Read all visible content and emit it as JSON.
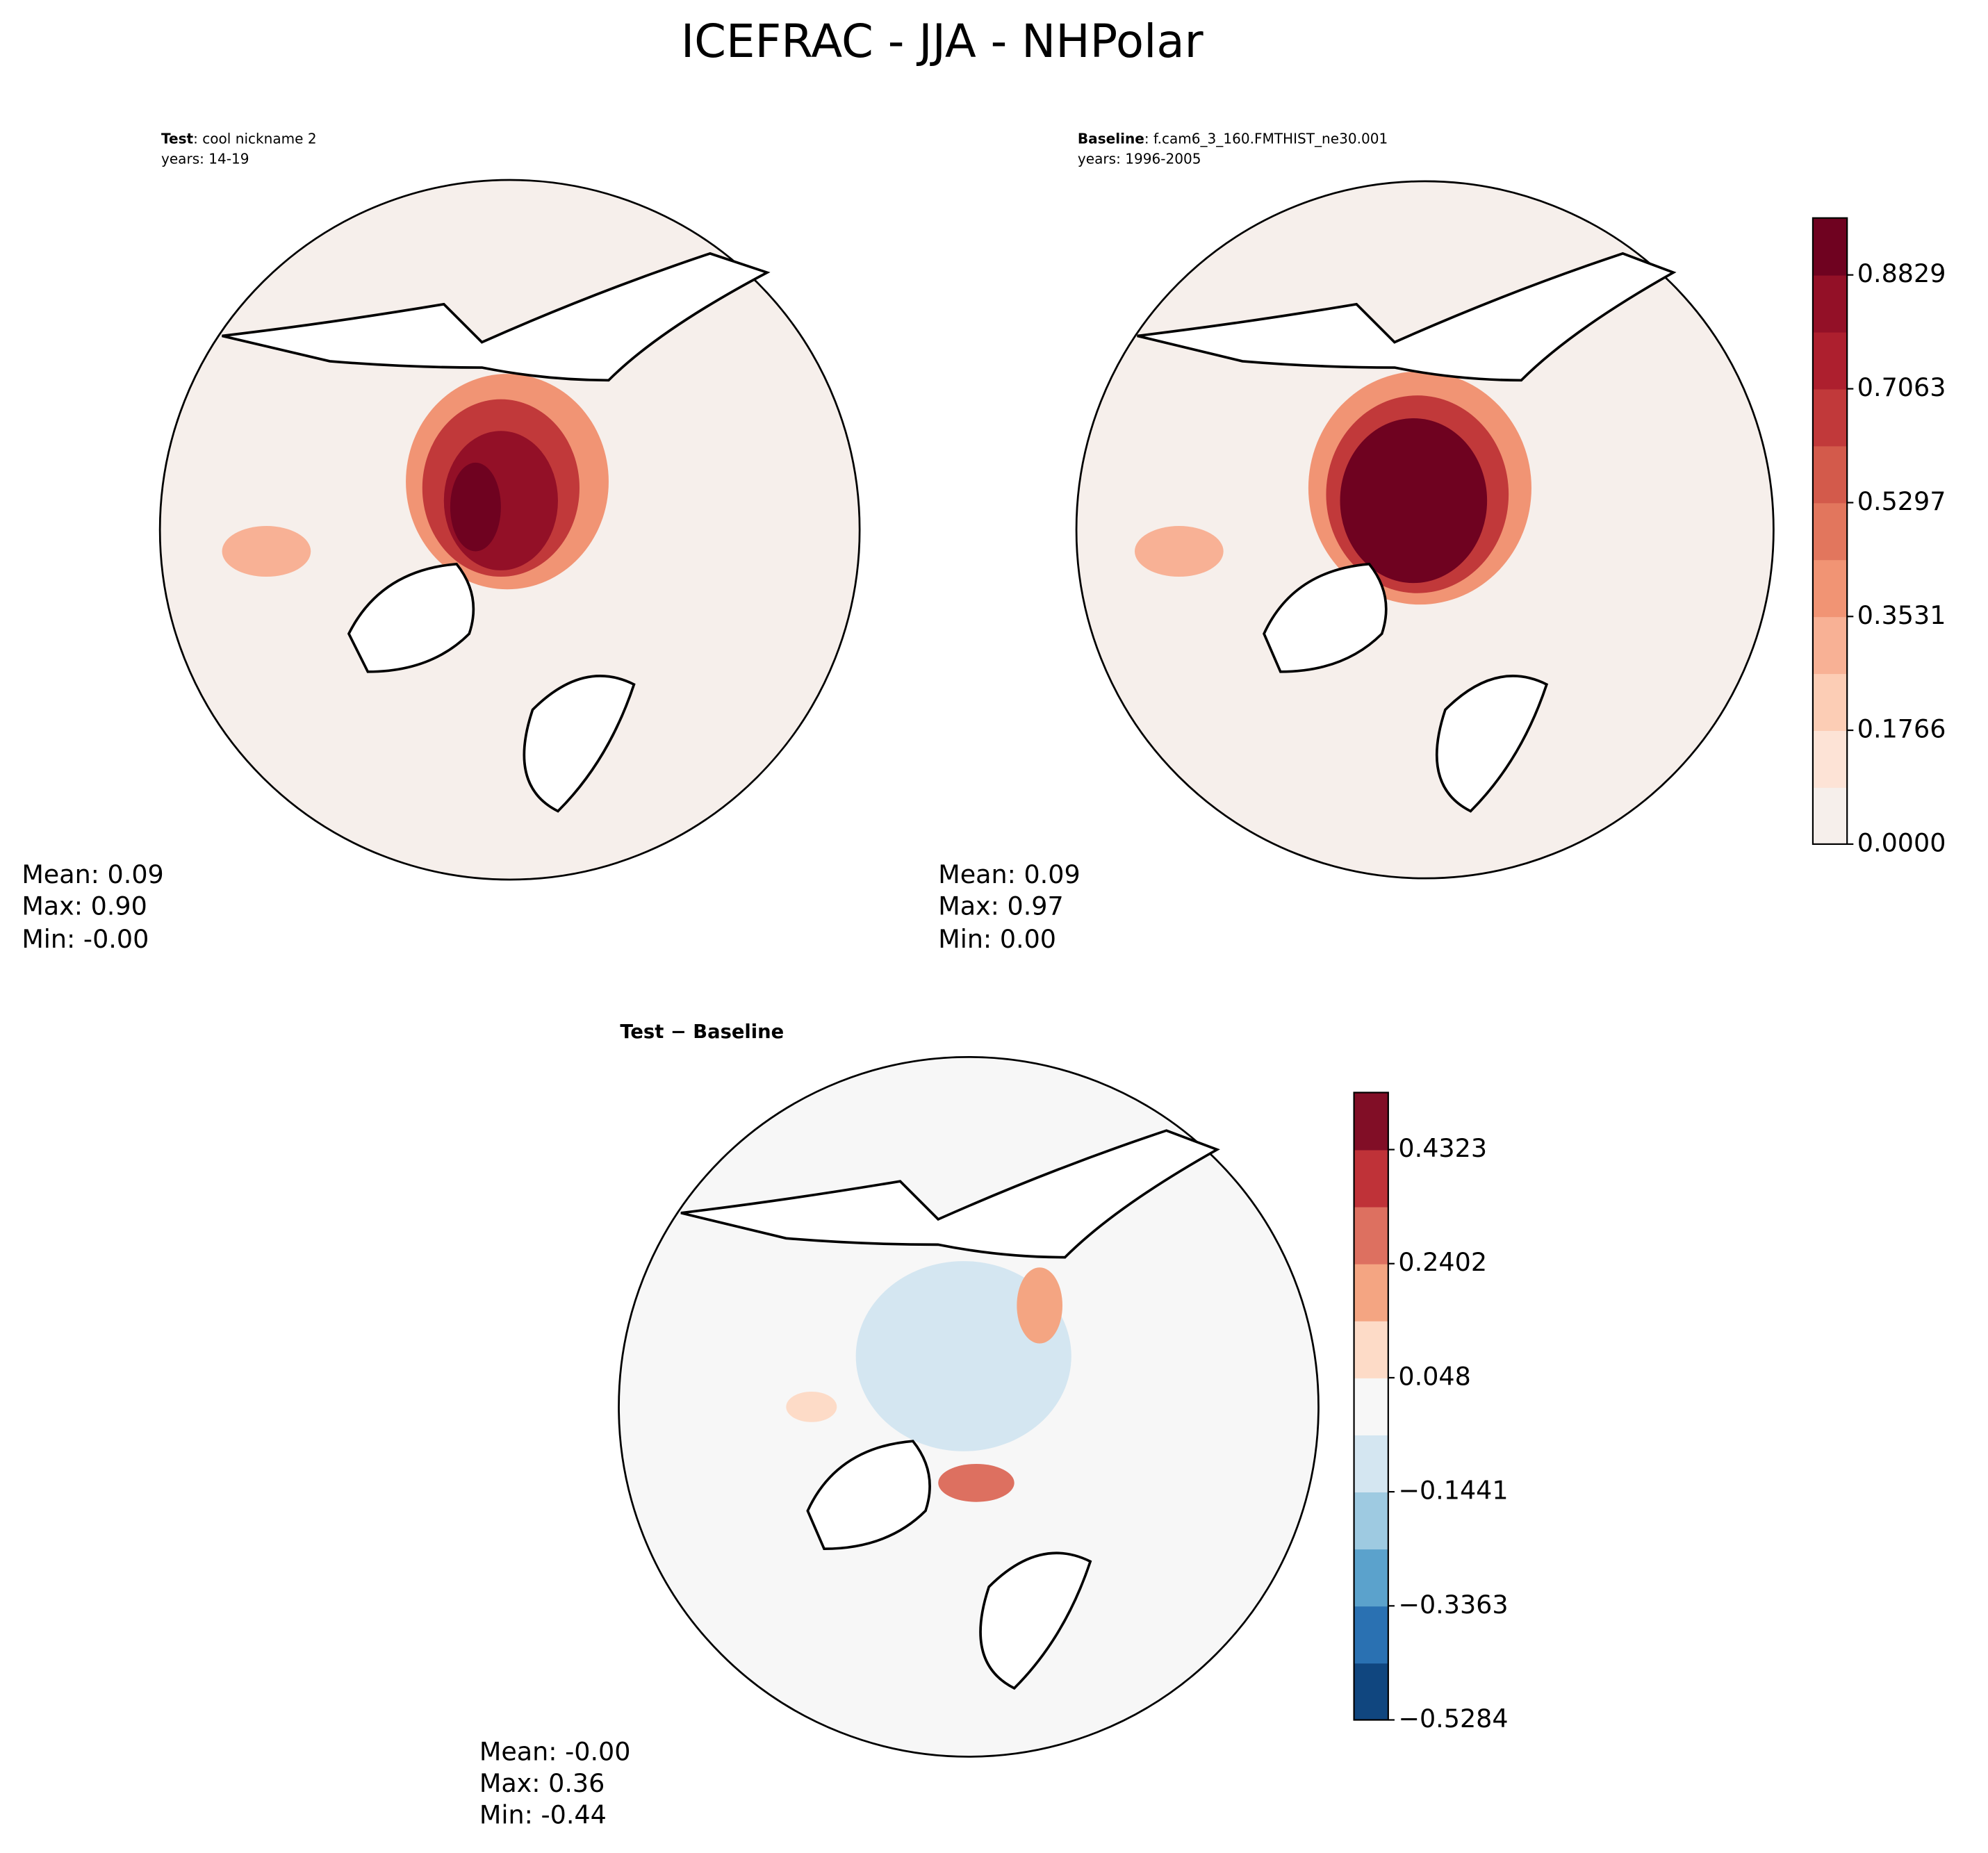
{
  "title": "ICEFRAC - JJA - NHPolar",
  "panels": [
    {
      "label": "Test",
      "case": ": cool nickname 2",
      "years": "years: 14-19",
      "stats": [
        "Mean:  0.09",
        "Max:  0.90",
        "Min: -0.00"
      ]
    },
    {
      "label": "Baseline",
      "case": ": f.cam6_3_160.FMTHIST_ne30.001",
      "years": "years: 1996-2005",
      "stats": [
        "Mean:  0.09",
        "Max:  0.97",
        "Min:  0.00"
      ]
    },
    {
      "label": "Test − Baseline",
      "stats": [
        "Mean: -0.00",
        "Max:  0.36",
        "Min: -0.44"
      ]
    }
  ],
  "colorbars": [
    {
      "ylim": [
        0,
        0.9712
      ],
      "yticks": [
        {
          "value": 0,
          "label": "0.0000"
        },
        0.1766,
        0.3531,
        0.5297,
        0.7063,
        0.8829
      ],
      "colors": [
        "#f6efeb",
        "#fde3d6",
        "#fccdb5",
        "#f8b195",
        "#f19474",
        "#e2765d",
        "#d35a4b",
        "#c1393a",
        "#ad1f2e",
        "#931027",
        "#6f0220"
      ]
    },
    {
      "ylim": [
        -0.5284,
        0.5284
      ],
      "yticks": [
        {
          "value": -0.5284,
          "label": "−0.5284"
        },
        {
          "value": -0.3363,
          "label": "−0.3363"
        },
        {
          "value": -0.1441,
          "label": "−0.1441"
        },
        0.048,
        0.2402,
        0.4323
      ],
      "colors": [
        "#10467f",
        "#2a71b2",
        "#5ba2cc",
        "#9ecae1",
        "#d4e6f1",
        "#f7f7f7",
        "#fddbc7",
        "#f4a582",
        "#dd7060",
        "#bf3238",
        "#810e26"
      ]
    }
  ]
}
